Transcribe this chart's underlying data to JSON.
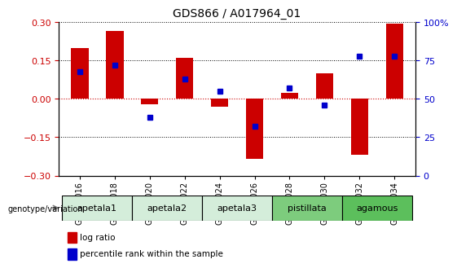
{
  "title": "GDS866 / A017964_01",
  "samples": [
    "GSM21016",
    "GSM21018",
    "GSM21020",
    "GSM21022",
    "GSM21024",
    "GSM21026",
    "GSM21028",
    "GSM21030",
    "GSM21032",
    "GSM21034"
  ],
  "log_ratio": [
    0.2,
    0.265,
    -0.02,
    0.16,
    -0.03,
    -0.235,
    0.025,
    0.1,
    -0.22,
    0.295
  ],
  "percentile_rank": [
    68,
    72,
    38,
    63,
    55,
    32,
    57,
    46,
    78,
    78
  ],
  "groups": [
    {
      "label": "apetala1",
      "samples": [
        0,
        1
      ],
      "color": "#d4edda"
    },
    {
      "label": "apetala2",
      "samples": [
        2,
        3
      ],
      "color": "#d4edda"
    },
    {
      "label": "apetala3",
      "samples": [
        4,
        5
      ],
      "color": "#d4edda"
    },
    {
      "label": "pistillata",
      "samples": [
        6,
        7
      ],
      "color": "#7dcc7d"
    },
    {
      "label": "agamous",
      "samples": [
        8,
        9
      ],
      "color": "#5cbf5c"
    }
  ],
  "ylim": [
    -0.3,
    0.3
  ],
  "yticks_left": [
    -0.3,
    -0.15,
    0.0,
    0.15,
    0.3
  ],
  "yticks_right": [
    0,
    25,
    50,
    75,
    100
  ],
  "bar_color": "#cc0000",
  "dot_color": "#0000cc",
  "hline_color": "#cc0000",
  "grid_color": "#000000",
  "background_color": "#ffffff"
}
